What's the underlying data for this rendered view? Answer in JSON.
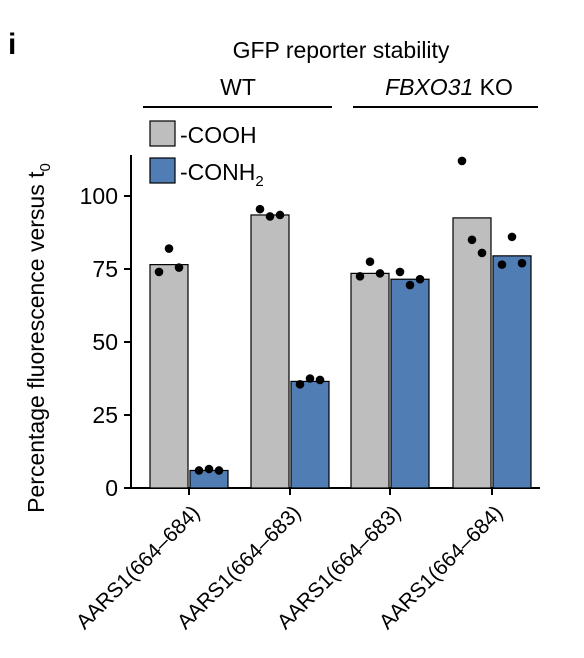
{
  "panel_label": "i",
  "chart_data": {
    "type": "bar",
    "title": "GFP reporter stability",
    "ylabel": "Percentage fluorescence versus t",
    "ylabel_subscript": "0",
    "ylim": [
      0,
      115
    ],
    "yticks": [
      0,
      25,
      50,
      75,
      100
    ],
    "grid": false,
    "legend_position": "top-left",
    "groups": [
      {
        "label": "WT",
        "label_italic": "",
        "categories": [
          0,
          1
        ]
      },
      {
        "label": " KO",
        "label_italic": "FBXO31",
        "categories": [
          2,
          3
        ]
      }
    ],
    "categories": [
      "AARS1(664–684)",
      "AARS1(664–683)",
      "AARS1(664–683)",
      "AARS1(664–684)"
    ],
    "series": [
      {
        "name": "-COOH",
        "color": "#bebebe",
        "values": [
          76.5,
          93.5,
          73.5,
          92.5
        ],
        "points": [
          [
            74,
            82,
            75.5
          ],
          [
            95.5,
            93,
            93.5
          ],
          [
            72.5,
            77.5,
            73.5
          ],
          [
            112,
            85,
            80.5
          ]
        ]
      },
      {
        "name": "-CONH",
        "name_subscript": "2",
        "color": "#4f7db4",
        "values": [
          6,
          36.5,
          71.5,
          79.5
        ],
        "points": [
          [
            6,
            6.5,
            6
          ],
          [
            35.5,
            37.5,
            37
          ],
          [
            74,
            69.5,
            71.5
          ],
          [
            76.5,
            86,
            77
          ]
        ]
      }
    ]
  }
}
